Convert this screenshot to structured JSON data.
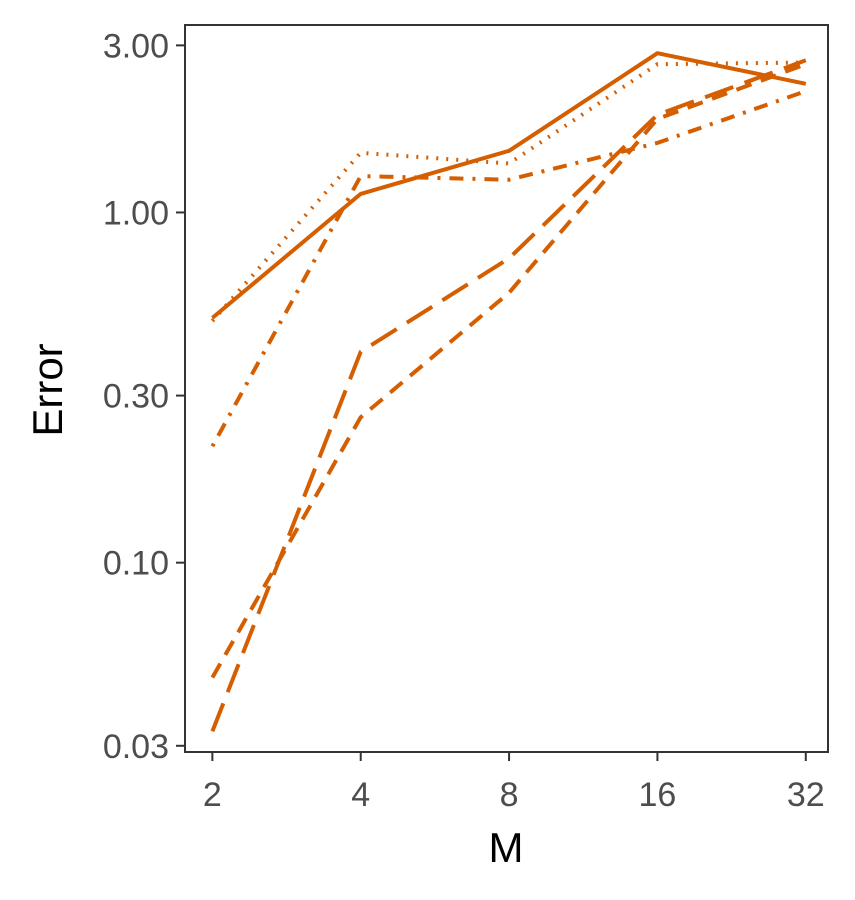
{
  "chart_data": {
    "type": "line",
    "xlabel": "M",
    "ylabel": "Error",
    "x_scale": "log2",
    "y_scale": "log10",
    "x": [
      2,
      4,
      8,
      16,
      32
    ],
    "x_tick_labels": [
      "2",
      "4",
      "8",
      "16",
      "32"
    ],
    "y_ticks": [
      0.03,
      0.1,
      0.3,
      1.0,
      3.0
    ],
    "y_tick_labels": [
      "0.03",
      "0.10",
      "0.30",
      "1.00",
      "3.00"
    ],
    "xlim": [
      1.76,
      35.5
    ],
    "ylim": [
      0.0288,
      3.43
    ],
    "grid": false,
    "legend": "none",
    "line_color": "#D55E00",
    "series": [
      {
        "linestyle": "solid",
        "values": [
          0.5,
          1.13,
          1.5,
          2.85,
          2.33
        ]
      },
      {
        "linestyle": "dotted",
        "values": [
          0.49,
          1.48,
          1.38,
          2.65,
          2.68
        ]
      },
      {
        "linestyle": "dashdot",
        "values": [
          0.215,
          1.27,
          1.24,
          1.58,
          2.22
        ]
      },
      {
        "linestyle": "longdash",
        "values": [
          0.033,
          0.4,
          0.74,
          1.9,
          2.72
        ]
      },
      {
        "linestyle": "dashed",
        "values": [
          0.047,
          0.26,
          0.59,
          1.85,
          2.65
        ]
      }
    ]
  }
}
